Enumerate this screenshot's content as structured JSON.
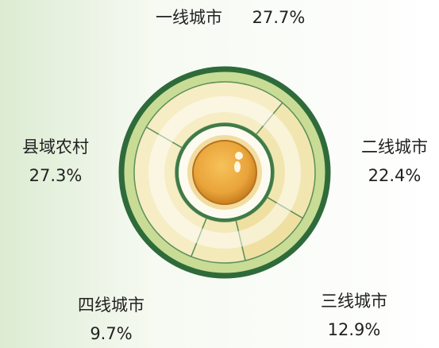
{
  "chart_data": {
    "type": "pie",
    "categories": [
      "一线城市",
      "二线城市",
      "三线城市",
      "四线城市",
      "县域农村"
    ],
    "values": [
      27.7,
      22.4,
      12.9,
      9.7,
      27.3
    ],
    "value_labels": [
      "27.7%",
      "22.4%",
      "12.9%",
      "9.7%",
      "27.3%"
    ],
    "colors": [
      "#f6edc4",
      "#f2e6b0",
      "#efe0a2",
      "#f4e9b8",
      "#f6edc4"
    ]
  }
}
